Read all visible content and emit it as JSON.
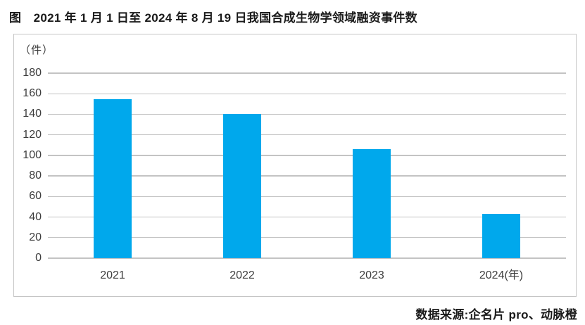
{
  "title": "图　2021 年 1 月 1 日至 2024 年 8 月 19 日我国合成生物学领域融资事件数",
  "source": "数据来源:企名片 pro、动脉橙",
  "chart_data": {
    "type": "bar",
    "title": "2021 年 1 月 1 日至 2024 年 8 月 19 日我国合成生物学领域融资事件数",
    "y_unit": "（件）",
    "categories": [
      "2021",
      "2022",
      "2023",
      "2024"
    ],
    "last_category_suffix": "(年)",
    "values": [
      155,
      140,
      106,
      43
    ],
    "yticks": [
      0,
      20,
      40,
      60,
      80,
      100,
      120,
      140,
      160,
      180
    ],
    "ylim": [
      0,
      180
    ],
    "grid": true,
    "legend": "none",
    "bar_color": "#00a8ec",
    "gridline_color": "#c3c3c3",
    "xlabel": "年",
    "ylabel": "件"
  }
}
